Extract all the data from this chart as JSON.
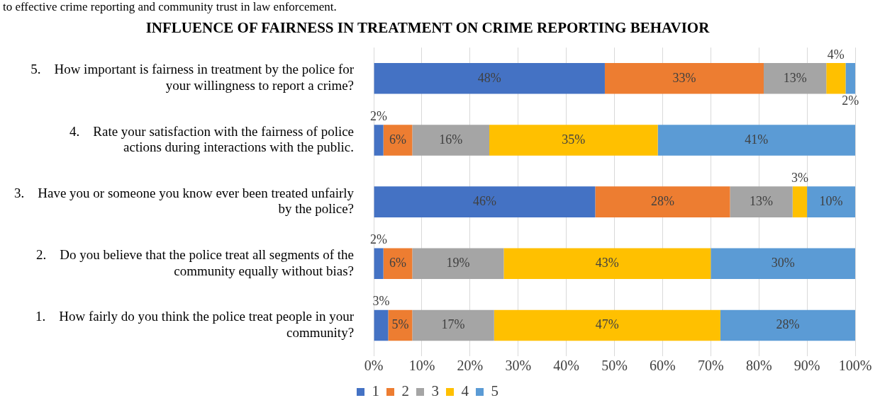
{
  "chart_data": {
    "type": "bar",
    "orientation": "horizontal",
    "stacked": true,
    "title": "INFLUENCE OF FAIRNESS IN TREATMENT ON CRIME REPORTING BEHAVIOR",
    "annotations": [
      "to effective crime reporting and community trust in law enforcement."
    ],
    "categories": [
      "5.    How important is fairness in treatment by the police for your willingness to report a crime?",
      "4.    Rate your satisfaction with the fairness of police actions during interactions with the public.",
      "3.    Have you or someone you know ever been treated unfairly by the police?",
      "2.    Do you believe that the police treat all segments of the community equally without bias?",
      "1.    How fairly do you think the police treat people in your community?"
    ],
    "series": [
      {
        "name": "1",
        "color": "#4472c4",
        "values": [
          48,
          2,
          46,
          2,
          3
        ],
        "value_labels": [
          "48%",
          "2%",
          "46%",
          "2%",
          "3%"
        ]
      },
      {
        "name": "2",
        "color": "#ed7d31",
        "values": [
          33,
          6,
          28,
          6,
          5
        ],
        "value_labels": [
          "33%",
          "6%",
          "28%",
          "6%",
          "5%"
        ]
      },
      {
        "name": "3",
        "color": "#a5a5a5",
        "values": [
          13,
          16,
          13,
          19,
          17
        ],
        "value_labels": [
          "13%",
          "16%",
          "13%",
          "19%",
          "17%"
        ]
      },
      {
        "name": "4",
        "color": "#ffc000",
        "values": [
          4,
          35,
          3,
          43,
          47
        ],
        "value_labels": [
          "4%",
          "35%",
          "3%",
          "43%",
          "47%"
        ]
      },
      {
        "name": "5",
        "color": "#5b9bd5",
        "values": [
          2,
          41,
          10,
          30,
          28
        ],
        "value_labels": [
          "2%",
          "41%",
          "10%",
          "30%",
          "28%"
        ]
      }
    ],
    "xlim": [
      0,
      100
    ],
    "xticks": [
      {
        "value": 0,
        "label": "0%"
      },
      {
        "value": 10,
        "label": "10%"
      },
      {
        "value": 20,
        "label": "20%"
      },
      {
        "value": 30,
        "label": "30%"
      },
      {
        "value": 40,
        "label": "40%"
      },
      {
        "value": 50,
        "label": "50%"
      },
      {
        "value": 60,
        "label": "60%"
      },
      {
        "value": 70,
        "label": "70%"
      },
      {
        "value": 80,
        "label": "80%"
      },
      {
        "value": 90,
        "label": "90%"
      },
      {
        "value": 100,
        "label": "100%"
      }
    ],
    "grid": "x",
    "legend": "bottom"
  }
}
